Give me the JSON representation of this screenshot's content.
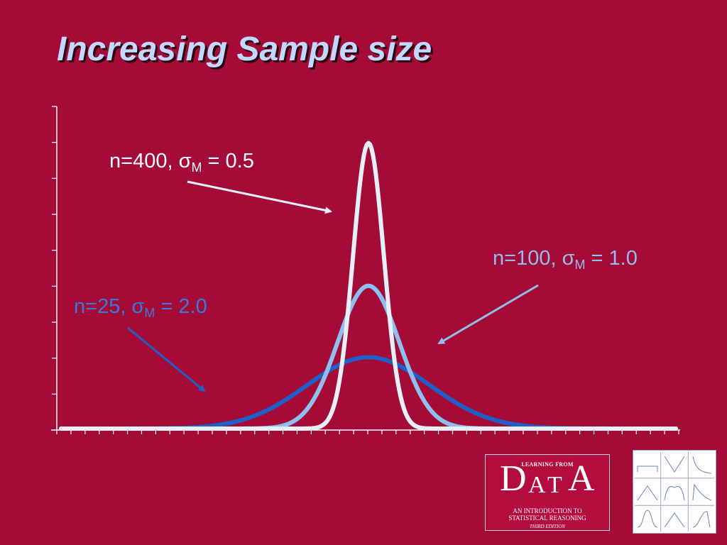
{
  "slide": {
    "title": "Increasing Sample size",
    "background_color": "#a50b37",
    "title_color": "#c3d8ff"
  },
  "chart_data": {
    "type": "line",
    "title": "",
    "xlabel": "",
    "ylabel": "",
    "x_domain": [
      -10,
      10
    ],
    "y_domain": [
      0,
      0.9
    ],
    "y_tick_count": 9,
    "x_tick_count": 44,
    "tick_labels": "none",
    "grid": false,
    "legend": "none",
    "series": [
      {
        "name": "n=25, σM = 2.0",
        "n": 25,
        "mean": 0,
        "sd": 2.0,
        "color": "#1f5fc8"
      },
      {
        "name": "n=100, σM = 1.0",
        "n": 100,
        "mean": 0,
        "sd": 1.0,
        "color": "#8fbfee"
      },
      {
        "name": "n=400, σM = 0.5",
        "n": 400,
        "mean": 0,
        "sd": 0.5,
        "color": "#e6eef8"
      }
    ],
    "annotations": [
      {
        "n_text": "n=400, σ",
        "sub": "M",
        "value_text": " = 0.5",
        "color": "#ffffff",
        "arrow_color": "#e6eef8",
        "points_to": "n=400 curve"
      },
      {
        "n_text": "n=100, σ",
        "sub": "M",
        "value_text": " = 1.0",
        "color": "#8fbfee",
        "arrow_color": "#8fbfee",
        "points_to": "n=100 curve"
      },
      {
        "n_text": "n=25, σ",
        "sub": "M",
        "value_text": " = 2.0",
        "color": "#3b78dc",
        "arrow_color": "#1f5fc8",
        "points_to": "n=25 curve"
      }
    ]
  },
  "book_logo": {
    "top_line": "LEARNING FROM",
    "word_letters": [
      "D",
      "A",
      "T",
      "A"
    ],
    "subtitle_line1": "AN INTRODUCTION TO",
    "subtitle_line2": "STATISTICAL REASONING",
    "edition": "THIRD EDITION"
  },
  "thumbnail_grid": {
    "icon": "distribution-thumbnails-icon",
    "rows": 3,
    "cols": 3
  }
}
